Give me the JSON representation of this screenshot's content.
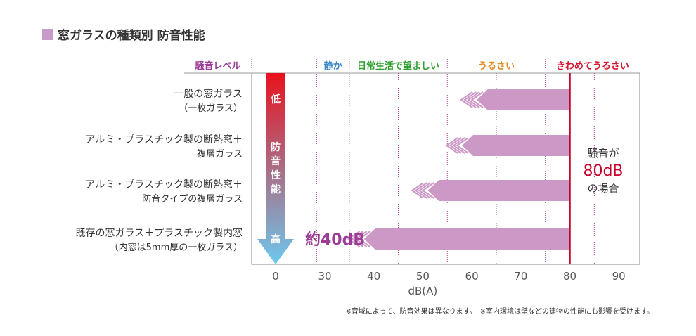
{
  "title": "窓ガラスの種類別 防音性能",
  "colors": {
    "title_swatch": "#c89ac6",
    "bar": "#cc99c6",
    "red_line": "#c8002c",
    "grid_dot": "#b0428e",
    "levels": [
      "#9b3d97",
      "#3b88c6",
      "#2f9e2f",
      "#e08a1e",
      "#d4112b"
    ]
  },
  "level_header": "騒音レベル",
  "levels": [
    {
      "label": "静か",
      "from": 25,
      "to": 35
    },
    {
      "label": "日常生活で望ましい",
      "from": 35,
      "to": 55
    },
    {
      "label": "うるさい",
      "from": 55,
      "to": 75
    },
    {
      "label": "きわめてうるさい",
      "from": 75,
      "to": 95
    }
  ],
  "arrow": {
    "label_low": "低",
    "label_mid": [
      "防",
      "音",
      "性",
      "能"
    ],
    "label_high": "高",
    "colors": {
      "top": "#e8121d",
      "bottom": "#6cc8ee"
    }
  },
  "note_right": {
    "line1": "騒音が",
    "line2": "80dB",
    "line3": "の場合"
  },
  "callout": "約40dB",
  "footnote": "※音域によって、防音効果は異なります。　※室内環境は壁などの建物の性能にも影響を受けます。",
  "chart_data": {
    "type": "bar",
    "orientation": "horizontal",
    "categories": [
      {
        "line1": "一般の窓ガラス",
        "line2": "（一枚ガラス）"
      },
      {
        "line1": "アルミ・プラスチック製の断熱窓＋",
        "line2": "複層ガラス"
      },
      {
        "line1": "アルミ・プラスチック製の断熱窓＋",
        "line2": "防音タイプの複層ガラス"
      },
      {
        "line1": "既存の窓ガラス＋プラスチック製内窓",
        "line2": "（内窓は5mm厚の一枚ガラス）"
      }
    ],
    "series": [
      {
        "start": 80,
        "values": [
          61,
          58,
          51,
          38
        ]
      }
    ],
    "xlabel": "dB(A)",
    "x_ticks": [
      0,
      30,
      40,
      50,
      60,
      70,
      80,
      90
    ],
    "reference_line": 80
  }
}
